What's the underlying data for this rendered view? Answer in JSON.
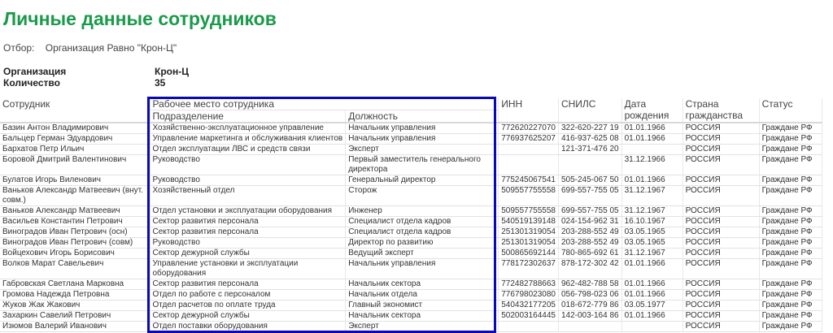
{
  "title": "Личные данные сотрудников",
  "filter": {
    "label": "Отбор:",
    "value": "Организация Равно \"Крон-Ц\""
  },
  "params": [
    {
      "key": "Организация",
      "value": "Крон-Ц"
    },
    {
      "key": "Количество",
      "value": "35"
    }
  ],
  "headers": {
    "employee": "Сотрудник",
    "workplace": "Рабочее место сотрудника",
    "department": "Подразделение",
    "position": "Должность",
    "inn": "ИНН",
    "snils": "СНИЛС",
    "birth": "Дата рождения",
    "country": "Страна гражданства",
    "status": "Статус"
  },
  "highlight_color": "#0a0ab4",
  "rows": [
    [
      "Базин Антон Владимирович",
      "Хозяйственно-эксплуатационное управление",
      "Начальник управления",
      "772620227070",
      "322-620-227 19",
      "01.01.1966",
      "РОССИЯ",
      "Граждане РФ"
    ],
    [
      "Бальцер Герман Эдуардович",
      "Управление маркетинга и обслуживания клиентов",
      "Начальник управления",
      "776937625207",
      "416-937-625 08",
      "01.01.1966",
      "РОССИЯ",
      "Граждане РФ"
    ],
    [
      "Бархатов Петр Ильич",
      "Отдел эксплуатации ЛВС и средств связи",
      "Эксперт",
      "",
      "121-371-476 20",
      "",
      "РОССИЯ",
      "Граждане РФ"
    ],
    [
      "Боровой Дмитрий Валентинович",
      "Руководство",
      "Первый заместитель генерального директора",
      "",
      "",
      "31.12.1966",
      "РОССИЯ",
      "Граждане РФ"
    ],
    [
      "Булатов Игорь Виленович",
      "Руководство",
      "Генеральный директор",
      "775245067541",
      "505-245-067 50",
      "01.01.1966",
      "РОССИЯ",
      "Граждане РФ"
    ],
    [
      "Ваньков Александр Матвеевич (внут. совм.)",
      "Хозяйственный отдел",
      "Сторож",
      "509557755558",
      "699-557-755 05",
      "31.12.1967",
      "РОССИЯ",
      "Граждане РФ"
    ],
    [
      "Ваньков Александр Матвеевич",
      "Отдел установки и эксплуатации оборудования",
      "Инженер",
      "509557755558",
      "699-557-755 05",
      "31.12.1967",
      "РОССИЯ",
      "Граждане РФ"
    ],
    [
      "Васильев Константин Петрович",
      "Сектор развития персонала",
      "Специалист отдела кадров",
      "540519139148",
      "024-154-962 31",
      "16.10.1967",
      "РОССИЯ",
      "Граждане РФ"
    ],
    [
      "Виноградов Иван Петрович (осн)",
      "Сектор развития персонала",
      "Специалист отдела кадров",
      "251301319054",
      "203-288-552 49",
      "03.05.1965",
      "РОССИЯ",
      "Граждане РФ"
    ],
    [
      "Виноградов Иван Петрович (совм)",
      "Руководство",
      "Директор по развитию",
      "251301319054",
      "203-288-552 49",
      "03.05.1965",
      "РОССИЯ",
      "Граждане РФ"
    ],
    [
      "Войцехович Игорь Борисович",
      "Сектор дежурной службы",
      "Ведущий эксперт",
      "500865692144",
      "780-865-692 61",
      "31.12.1967",
      "РОССИЯ",
      "Граждане РФ"
    ],
    [
      "Волков Марат Савельевич",
      "Управление установки и эксплуатации оборудования",
      "Начальник управления",
      "778172302637",
      "878-172-302 42",
      "01.01.1966",
      "РОССИЯ",
      "Граждане РФ"
    ],
    [
      "Габровская Светлана Марковна",
      "Сектор развития персонала",
      "Начальник сектора",
      "772482788663",
      "962-482-788 58",
      "01.01.1966",
      "РОССИЯ",
      "Граждане РФ"
    ],
    [
      "Громова Надежда Петровна",
      "Отдел по работе с персоналом",
      "Начальник отдела",
      "776798023080",
      "056-798-023 06",
      "01.01.1966",
      "РОССИЯ",
      "Граждане РФ"
    ],
    [
      "Жуков Жак Жакович",
      "Отдел расчетов по оплате труда",
      "Главный экономист",
      "540432177205",
      "018-672-779 86",
      "03.05.1977",
      "РОССИЯ",
      "Граждане РФ"
    ],
    [
      "Захаркин Савелий Петрович",
      "Сектор дежурной службы",
      "Начальник сектора",
      "502003164445",
      "142-003-164 86",
      "01.01.1966",
      "РОССИЯ",
      "Граждане РФ"
    ],
    [
      "Изюмов Валерий Иванович",
      "Отдел поставки оборудования",
      "Эксперт",
      "",
      "",
      "",
      "РОССИЯ",
      "Граждане РФ"
    ]
  ]
}
